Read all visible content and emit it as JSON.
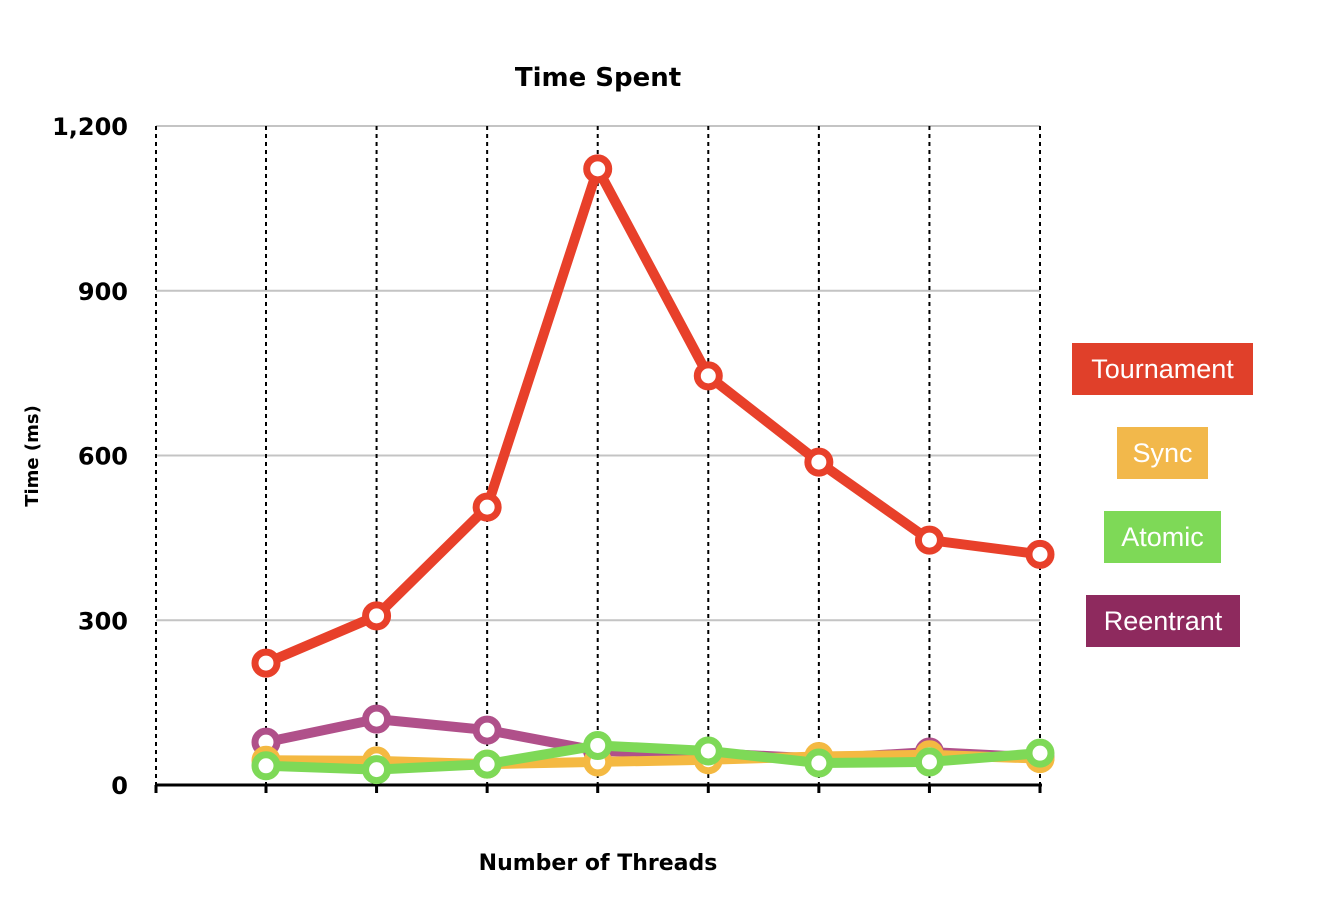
{
  "chart_data": {
    "type": "line",
    "title": "Time Spent",
    "xlabel": "Number of Threads",
    "ylabel": "Time (ms)",
    "ylim": [
      0,
      1200
    ],
    "yticks": [
      0,
      300,
      600,
      900,
      1200
    ],
    "ytick_labels": [
      "0",
      "300",
      "600",
      "900",
      "1,200"
    ],
    "x": [
      1,
      2,
      3,
      4,
      5,
      6,
      7,
      8
    ],
    "grid": true,
    "legend_position": "right",
    "series": [
      {
        "name": "Reentrant",
        "color": "#b0508a",
        "values": [
          78,
          120,
          100,
          62,
          58,
          48,
          60,
          50
        ]
      },
      {
        "name": "Sync",
        "color": "#f4b942",
        "values": [
          45,
          44,
          38,
          42,
          46,
          52,
          55,
          48
        ]
      },
      {
        "name": "Atomic",
        "color": "#7ed957",
        "values": [
          35,
          28,
          38,
          72,
          62,
          40,
          42,
          58
        ]
      },
      {
        "name": "Tournament",
        "color": "#e8402a",
        "values": [
          222,
          308,
          506,
          1122,
          745,
          588,
          446,
          420
        ]
      }
    ],
    "legend": [
      {
        "name": "Tournament",
        "color": "#e0402a"
      },
      {
        "name": "Sync",
        "color": "#f2b84b"
      },
      {
        "name": "Atomic",
        "color": "#7ed957"
      },
      {
        "name": "Reentrant",
        "color": "#8e2a5e"
      }
    ]
  }
}
